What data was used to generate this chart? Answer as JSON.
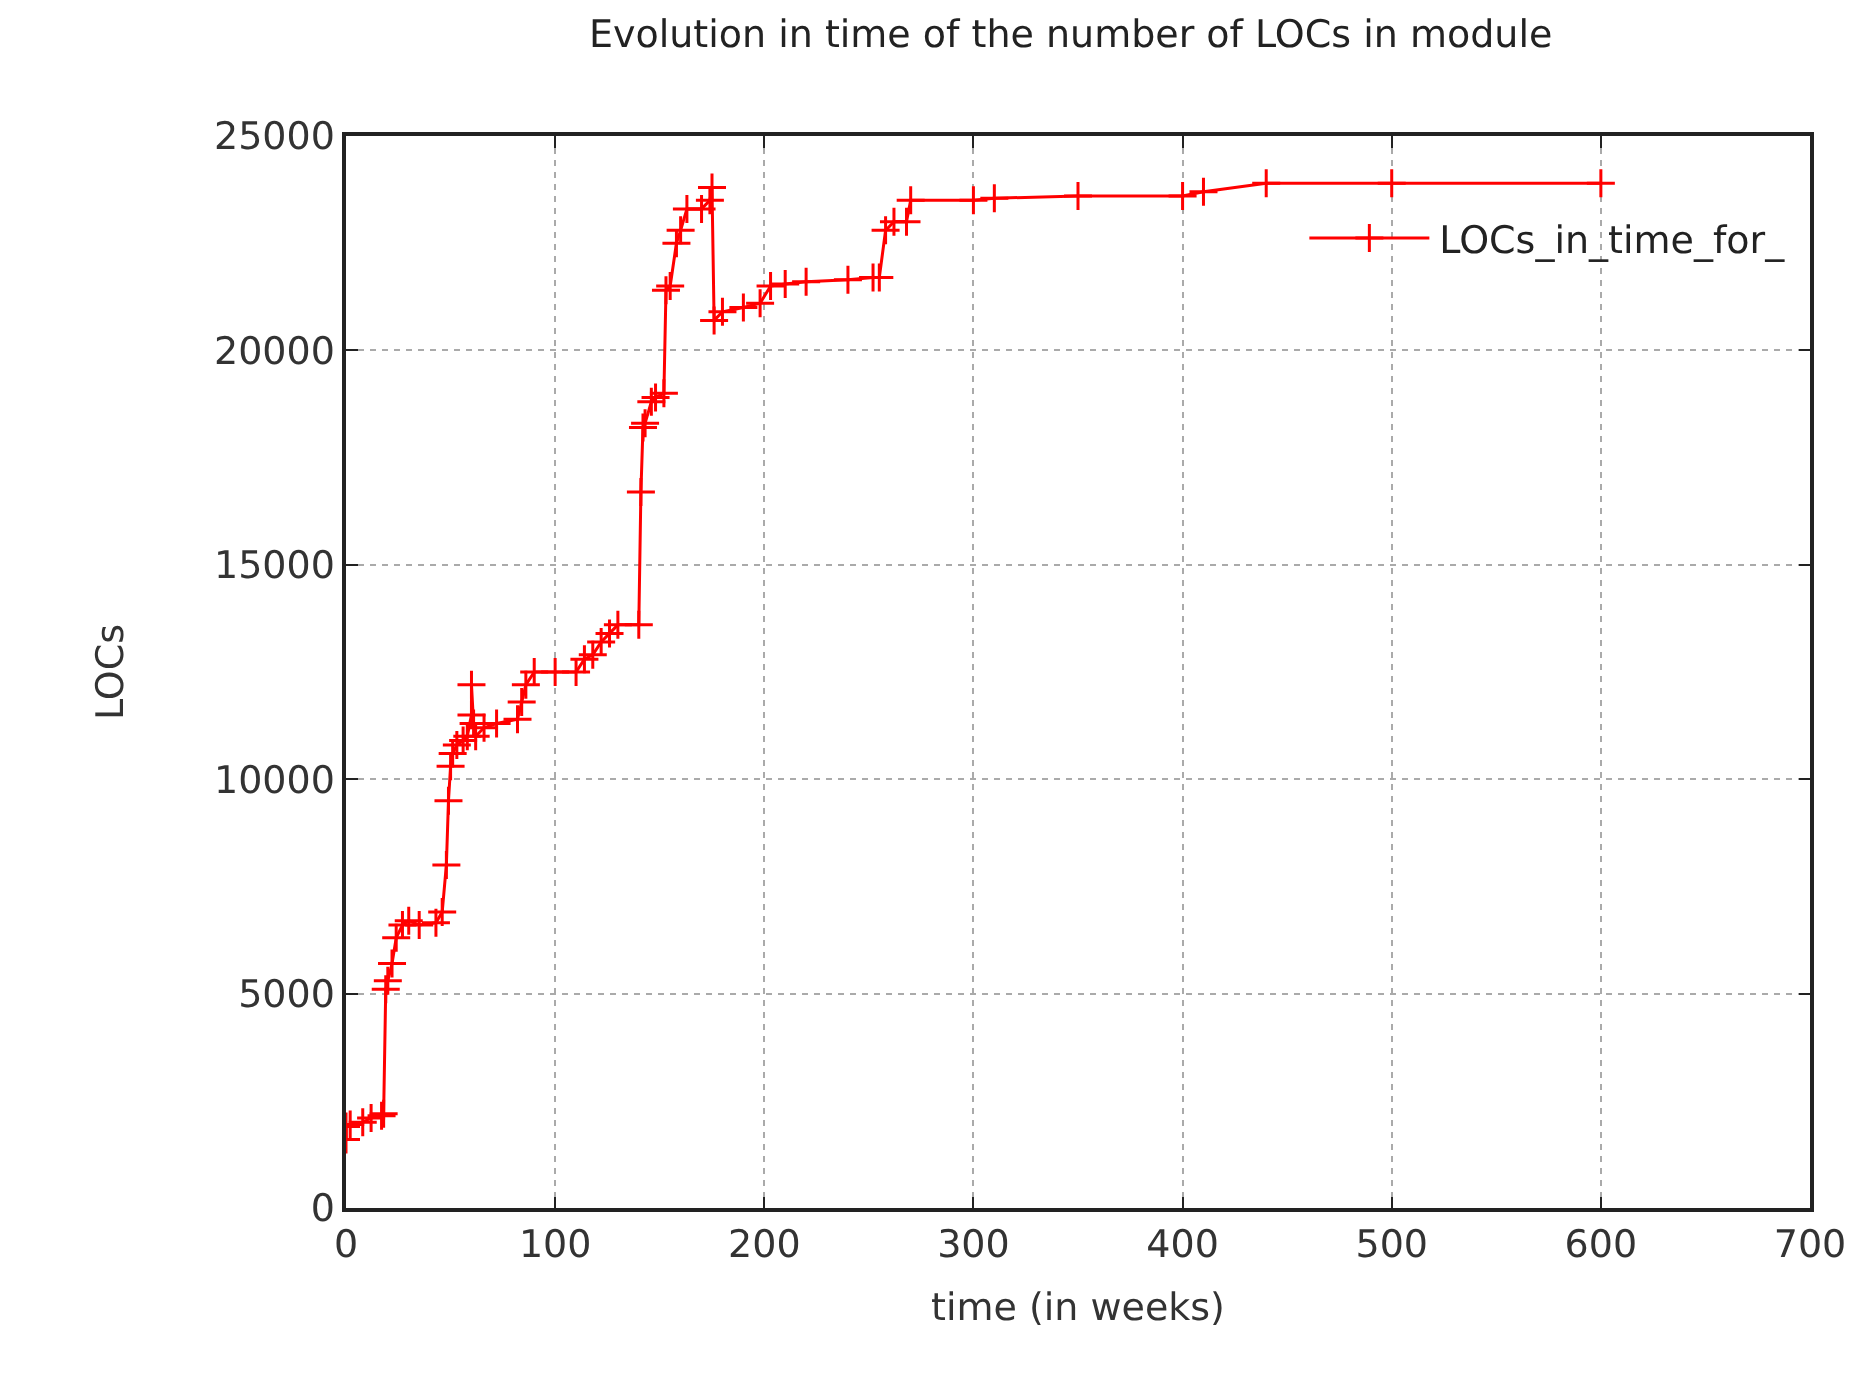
{
  "chart_data": {
    "type": "line",
    "title": "Evolution in time of the number of LOCs in module",
    "xlabel": "time (in weeks)",
    "ylabel": "LOCs",
    "x": [
      0,
      0,
      2,
      8,
      12,
      17,
      18,
      19,
      20,
      22,
      24,
      27,
      30,
      35,
      43,
      46,
      48,
      49,
      50,
      51,
      53,
      56,
      58,
      60,
      60,
      61,
      62,
      66,
      72,
      82,
      84,
      86,
      90,
      100,
      110,
      114,
      118,
      122,
      126,
      130,
      140,
      141,
      142,
      143,
      146,
      148,
      152,
      153,
      155,
      158,
      160,
      163,
      170,
      174,
      175,
      176,
      180,
      190,
      198,
      203,
      210,
      220,
      240,
      252,
      255,
      258,
      262,
      268,
      270,
      300,
      310,
      350,
      400,
      410,
      440,
      500,
      600
    ],
    "series": [
      {
        "name": "LOCs_in_time_for_",
        "color": "#ff0000",
        "values": [
          1600,
          1900,
          1950,
          2000,
          2100,
          2150,
          2200,
          5100,
          5300,
          5700,
          6300,
          6600,
          6700,
          6600,
          6650,
          6900,
          8000,
          9500,
          10300,
          10600,
          10800,
          10900,
          11000,
          11500,
          12200,
          11300,
          11000,
          11200,
          11300,
          11400,
          11800,
          12200,
          12500,
          12500,
          12500,
          12800,
          12900,
          13200,
          13400,
          13600,
          13600,
          16700,
          18200,
          18300,
          18800,
          18900,
          19000,
          21400,
          21500,
          22500,
          22800,
          23300,
          23300,
          23500,
          23800,
          20700,
          20900,
          21000,
          21100,
          21500,
          21550,
          21600,
          21650,
          21700,
          21700,
          22800,
          23000,
          23000,
          23500,
          23500,
          23550,
          23600,
          23600,
          23700,
          23900,
          23900,
          23900
        ]
      }
    ],
    "xlim": [
      0,
      700
    ],
    "xticks": [
      0,
      100,
      200,
      300,
      400,
      500,
      600,
      700
    ],
    "ylim": [
      0,
      25000
    ],
    "yticks": [
      0,
      5000,
      10000,
      15000,
      20000,
      25000
    ],
    "grid": true,
    "legend": "top right",
    "marker": "cross",
    "line_style": "solid"
  }
}
